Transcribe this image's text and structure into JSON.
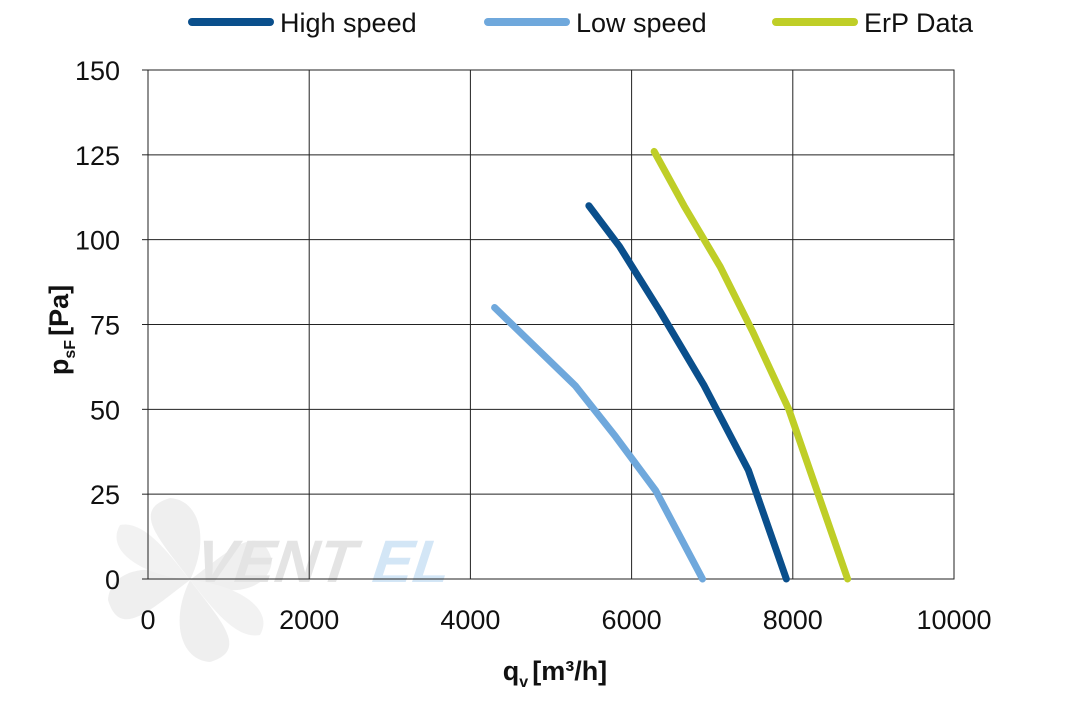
{
  "chart_data": {
    "type": "line",
    "xlabel": {
      "main": "q",
      "sub": "v",
      "unit": "[m³/h]"
    },
    "ylabel": {
      "main": "p",
      "sub": "sF",
      "unit": "[Pa]"
    },
    "xlim": [
      0,
      10000
    ],
    "ylim": [
      0,
      150
    ],
    "xticks": [
      0,
      2000,
      4000,
      6000,
      8000,
      10000
    ],
    "yticks": [
      0,
      25,
      50,
      75,
      100,
      125,
      150
    ],
    "grid": true,
    "legend_position": "top",
    "series": [
      {
        "name": "High speed",
        "color": "#0a4f8c",
        "x": [
          5470,
          5850,
          6350,
          6900,
          7450,
          7920
        ],
        "y": [
          110,
          98,
          79,
          57,
          32,
          0
        ]
      },
      {
        "name": "Low speed",
        "color": "#6fa8dc",
        "x": [
          4300,
          5300,
          5800,
          6300,
          6880
        ],
        "y": [
          80,
          57,
          42,
          26,
          0
        ]
      },
      {
        "name": "ErP Data",
        "color": "#bfce27",
        "x": [
          6280,
          6650,
          7100,
          7500,
          7950,
          8680
        ],
        "y": [
          126,
          110,
          92,
          73,
          50,
          0
        ]
      }
    ]
  },
  "watermark": {
    "brand": "VENTEL",
    "icon": "fan-icon"
  }
}
